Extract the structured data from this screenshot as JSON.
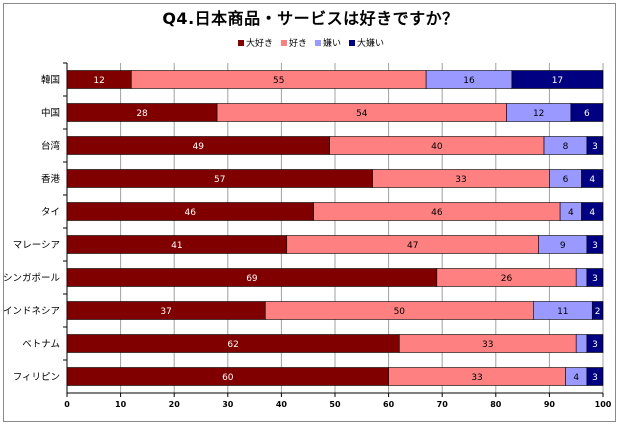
{
  "title": "Q4.日本商品・サービスは好きですか？",
  "colors": {
    "大好き": "#800000",
    "好き": "#FF8080",
    "嫌い": "#9999FF",
    "大嫌い": "#000080"
  },
  "chart_data": {
    "type": "bar",
    "orientation": "horizontal",
    "stacked": true,
    "title": "Q4.日本商品・サービスは好きですか？",
    "categories": [
      "韓国",
      "中国",
      "台湾",
      "香港",
      "タイ",
      "マレーシア",
      "シンガポール",
      "インドネシア",
      "ベトナム",
      "フィリピン"
    ],
    "series": [
      {
        "name": "大好き",
        "values": [
          12,
          28,
          49,
          57,
          46,
          41,
          69,
          37,
          62,
          60
        ]
      },
      {
        "name": "好き",
        "values": [
          55,
          54,
          40,
          33,
          46,
          47,
          26,
          50,
          33,
          33
        ]
      },
      {
        "name": "嫌い",
        "values": [
          16,
          12,
          8,
          6,
          4,
          9,
          2,
          11,
          2,
          4
        ]
      },
      {
        "name": "大嫌い",
        "values": [
          17,
          6,
          3,
          4,
          4,
          3,
          3,
          2,
          3,
          3
        ]
      }
    ],
    "value_labels": [
      [
        "12",
        "55",
        "16",
        "17"
      ],
      [
        "28",
        "54",
        "12",
        "6"
      ],
      [
        "49",
        "40",
        "8",
        "3"
      ],
      [
        "57",
        "33",
        "6",
        "4"
      ],
      [
        "46",
        "46",
        "4",
        "4"
      ],
      [
        "41",
        "47",
        "9",
        "3"
      ],
      [
        "69",
        "26",
        "",
        "3"
      ],
      [
        "37",
        "50",
        "11",
        "2"
      ],
      [
        "62",
        "33",
        "",
        "3"
      ],
      [
        "60",
        "33",
        "4",
        "3"
      ]
    ],
    "xlim": [
      0,
      100
    ],
    "xticks": [
      "0",
      "10",
      "20",
      "30",
      "40",
      "50",
      "60",
      "70",
      "80",
      "90",
      "100"
    ],
    "grid": true,
    "legend_position": "top-center"
  }
}
